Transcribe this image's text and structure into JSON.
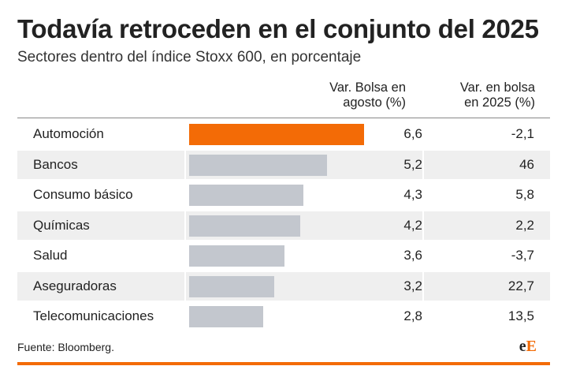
{
  "title": "Todavía retroceden en el conjunto del 2025",
  "subtitle": "Sectores dentro del índice Stoxx 600, en porcentaje",
  "columns": {
    "col1": [
      "Var. Bolsa en",
      "agosto (%)"
    ],
    "col2": [
      "Var. en bolsa",
      "en 2025 (%)"
    ]
  },
  "source": "Fuente: Bloomberg.",
  "logo": {
    "part1": "e",
    "part2": "E"
  },
  "colors": {
    "highlight": "#f36b06",
    "bar": "#c3c7ce",
    "shade": "#efefef"
  },
  "chart_data": {
    "type": "table",
    "title": "Todavía retroceden en el conjunto del 2025",
    "subtitle": "Sectores dentro del índice Stoxx 600, en porcentaje",
    "categories": [
      "Automoción",
      "Bancos",
      "Consumo básico",
      "Químicas",
      "Salud",
      "Aseguradoras",
      "Telecomunicaciones"
    ],
    "series": [
      {
        "name": "Var. Bolsa en agosto (%)",
        "values": [
          6.6,
          5.2,
          4.3,
          4.2,
          3.6,
          3.2,
          2.8
        ]
      },
      {
        "name": "Var. en bolsa en 2025 (%)",
        "values": [
          -2.1,
          46,
          5.8,
          2.2,
          -3.7,
          22.7,
          13.5
        ]
      }
    ],
    "display": {
      "augusto": [
        "6,6",
        "5,2",
        "4,3",
        "4,2",
        "3,6",
        "3,2",
        "2,8"
      ],
      "ytd": [
        "-2,1",
        "46",
        "5,8",
        "2,2",
        "-3,7",
        "22,7",
        "13,5"
      ]
    },
    "bar_max": 6.6,
    "highlight_index": 0
  }
}
